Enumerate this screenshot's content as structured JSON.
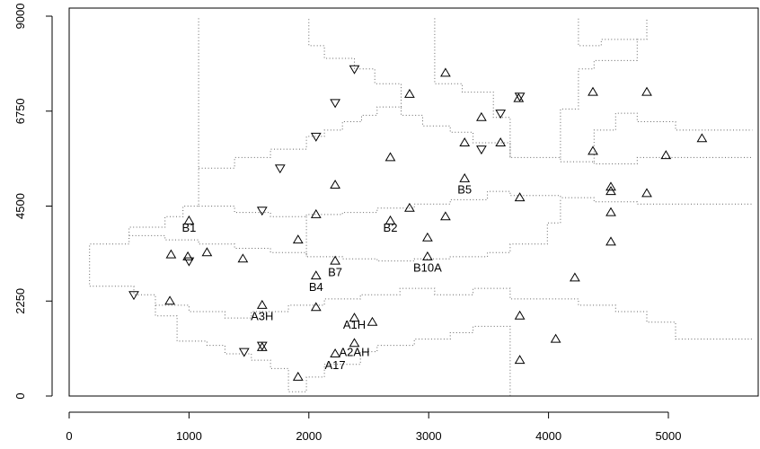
{
  "chart_data": {
    "type": "scatter",
    "title": "",
    "xlabel": "",
    "ylabel": "",
    "xlim": [
      0,
      5700
    ],
    "ylim": [
      0,
      9000
    ],
    "xticks": [
      0,
      1000,
      2000,
      3000,
      4000,
      5000
    ],
    "yticks": [
      0,
      2250,
      4500,
      6750,
      9000
    ],
    "grid": false,
    "legend": "none",
    "marker_color": "#000000",
    "boundary_color": "#666666",
    "series": [
      {
        "marker": "triangle-up",
        "points": [
          [
            1000,
            4150
          ],
          [
            850,
            3350
          ],
          [
            990,
            3300
          ],
          [
            1150,
            3400
          ],
          [
            1450,
            3250
          ],
          [
            840,
            2250
          ],
          [
            1610,
            2150
          ],
          [
            1910,
            3700
          ],
          [
            2060,
            4300
          ],
          [
            2220,
            5000
          ],
          [
            2680,
            5650
          ],
          [
            2060,
            2100
          ],
          [
            2060,
            2850
          ],
          [
            2220,
            3200
          ],
          [
            2380,
            1850
          ],
          [
            2530,
            1750
          ],
          [
            2380,
            1250
          ],
          [
            2220,
            1000
          ],
          [
            1910,
            450
          ],
          [
            1610,
            1150
          ],
          [
            2680,
            4150
          ],
          [
            2840,
            4450
          ],
          [
            2990,
            3750
          ],
          [
            3140,
            4250
          ],
          [
            2990,
            3300
          ],
          [
            2840,
            7150
          ],
          [
            3140,
            7650
          ],
          [
            3300,
            6000
          ],
          [
            3300,
            5150
          ],
          [
            3440,
            6600
          ],
          [
            3600,
            6000
          ],
          [
            3750,
            7050
          ],
          [
            3760,
            4700
          ],
          [
            3760,
            1900
          ],
          [
            3760,
            850
          ],
          [
            4060,
            1350
          ],
          [
            4220,
            2800
          ],
          [
            4370,
            7200
          ],
          [
            4370,
            5800
          ],
          [
            4520,
            4950
          ],
          [
            4520,
            4850
          ],
          [
            4520,
            4350
          ],
          [
            4520,
            3650
          ],
          [
            4820,
            7200
          ],
          [
            4820,
            4800
          ],
          [
            4980,
            5700
          ],
          [
            5280,
            6100
          ]
        ]
      },
      {
        "marker": "triangle-down",
        "points": [
          [
            540,
            2400
          ],
          [
            1000,
            3200
          ],
          [
            1460,
            1050
          ],
          [
            1610,
            1200
          ],
          [
            1610,
            4400
          ],
          [
            1760,
            5400
          ],
          [
            2060,
            6150
          ],
          [
            2220,
            6950
          ],
          [
            2380,
            7750
          ],
          [
            3440,
            5850
          ],
          [
            3600,
            6700
          ],
          [
            3760,
            7100
          ]
        ]
      }
    ],
    "labels": [
      {
        "text": "B1",
        "x": 1000,
        "y": 4000
      },
      {
        "text": "B2",
        "x": 2680,
        "y": 4000
      },
      {
        "text": "B5",
        "x": 3300,
        "y": 4900
      },
      {
        "text": "B7",
        "x": 2220,
        "y": 2950
      },
      {
        "text": "B4",
        "x": 2060,
        "y": 2600
      },
      {
        "text": "B10A",
        "x": 2990,
        "y": 3050
      },
      {
        "text": "A3H",
        "x": 1610,
        "y": 1900
      },
      {
        "text": "A1H",
        "x": 2380,
        "y": 1700
      },
      {
        "text": "A2AH",
        "x": 2380,
        "y": 1050
      },
      {
        "text": "A17",
        "x": 2220,
        "y": 750
      }
    ],
    "boundaries": [
      [
        [
          1080,
          8950
        ],
        [
          1080,
          4500
        ],
        [
          950,
          4500
        ],
        [
          950,
          4250
        ],
        [
          800,
          4250
        ],
        [
          800,
          4000
        ],
        [
          500,
          4000
        ],
        [
          500,
          3600
        ],
        [
          170,
          3600
        ],
        [
          170,
          2600
        ],
        [
          540,
          2600
        ],
        [
          540,
          2400
        ],
        [
          720,
          2400
        ],
        [
          720,
          2150
        ],
        [
          1000,
          2150
        ],
        [
          1000,
          2000
        ],
        [
          1300,
          2000
        ],
        [
          1300,
          1850
        ],
        [
          1520,
          1850
        ],
        [
          1520,
          2000
        ],
        [
          1830,
          2000
        ],
        [
          1830,
          2150
        ],
        [
          2130,
          2150
        ],
        [
          2130,
          2300
        ],
        [
          2430,
          2300
        ],
        [
          2430,
          2400
        ],
        [
          2760,
          2400
        ],
        [
          2760,
          2550
        ],
        [
          3050,
          2550
        ],
        [
          3050,
          2400
        ],
        [
          3370,
          2400
        ],
        [
          3370,
          2550
        ],
        [
          3680,
          2550
        ],
        [
          3680,
          2300
        ],
        [
          4250,
          2300
        ],
        [
          4250,
          2150
        ],
        [
          4560,
          2150
        ],
        [
          4560,
          2000
        ],
        [
          4820,
          2000
        ],
        [
          4820,
          1750
        ],
        [
          5060,
          1750
        ],
        [
          5060,
          1350
        ],
        [
          5700,
          1350
        ]
      ],
      [
        [
          1080,
          5400
        ],
        [
          1380,
          5400
        ],
        [
          1380,
          5650
        ],
        [
          1680,
          5650
        ],
        [
          1680,
          5850
        ],
        [
          1980,
          5850
        ],
        [
          1980,
          6150
        ],
        [
          2130,
          6150
        ],
        [
          2130,
          6300
        ],
        [
          2280,
          6300
        ],
        [
          2280,
          6500
        ],
        [
          2440,
          6500
        ],
        [
          2440,
          6650
        ],
        [
          2570,
          6650
        ],
        [
          2570,
          6850
        ],
        [
          2770,
          6850
        ],
        [
          2770,
          6650
        ],
        [
          2950,
          6650
        ],
        [
          2950,
          6400
        ],
        [
          3180,
          6400
        ],
        [
          3180,
          6250
        ],
        [
          3370,
          6250
        ],
        [
          3370,
          6000
        ],
        [
          3680,
          6000
        ],
        [
          3680,
          5650
        ],
        [
          4100,
          5650
        ],
        [
          4100,
          5550
        ],
        [
          4380,
          5550
        ],
        [
          4380,
          5500
        ],
        [
          4740,
          5500
        ],
        [
          4740,
          5650
        ],
        [
          5700,
          5650
        ]
      ],
      [
        [
          1080,
          4500
        ],
        [
          1380,
          4500
        ],
        [
          1380,
          4350
        ],
        [
          1680,
          4350
        ],
        [
          1680,
          4250
        ],
        [
          1980,
          4250
        ],
        [
          1980,
          4300
        ],
        [
          2280,
          4300
        ],
        [
          2280,
          4350
        ],
        [
          2570,
          4350
        ],
        [
          2570,
          4450
        ],
        [
          2880,
          4450
        ],
        [
          2880,
          4550
        ],
        [
          3180,
          4550
        ],
        [
          3180,
          4650
        ],
        [
          3490,
          4650
        ],
        [
          3490,
          4850
        ],
        [
          3680,
          4850
        ],
        [
          3680,
          4750
        ],
        [
          4100,
          4750
        ],
        [
          4100,
          4700
        ],
        [
          4380,
          4700
        ],
        [
          4380,
          4600
        ],
        [
          4740,
          4600
        ],
        [
          4740,
          4550
        ],
        [
          5700,
          4550
        ]
      ],
      [
        [
          1980,
          4250
        ],
        [
          1980,
          3300
        ],
        [
          2280,
          3300
        ],
        [
          2280,
          3250
        ],
        [
          2570,
          3250
        ],
        [
          2570,
          3200
        ],
        [
          2880,
          3200
        ],
        [
          2880,
          3250
        ],
        [
          3180,
          3250
        ],
        [
          3180,
          3300
        ],
        [
          3490,
          3300
        ],
        [
          3490,
          3400
        ],
        [
          3680,
          3400
        ],
        [
          3680,
          3600
        ],
        [
          3990,
          3600
        ],
        [
          3990,
          4100
        ],
        [
          4100,
          4100
        ],
        [
          4100,
          4700
        ]
      ],
      [
        [
          500,
          3800
        ],
        [
          800,
          3800
        ],
        [
          800,
          3700
        ],
        [
          1080,
          3700
        ],
        [
          1080,
          3600
        ],
        [
          1380,
          3600
        ],
        [
          1380,
          3500
        ],
        [
          1680,
          3500
        ],
        [
          1680,
          3400
        ],
        [
          1980,
          3400
        ],
        [
          1980,
          3300
        ]
      ],
      [
        [
          720,
          2150
        ],
        [
          720,
          1900
        ],
        [
          900,
          1900
        ],
        [
          900,
          1300
        ],
        [
          1150,
          1300
        ],
        [
          1150,
          1200
        ],
        [
          1300,
          1200
        ],
        [
          1300,
          1000
        ],
        [
          1520,
          1000
        ],
        [
          1520,
          850
        ],
        [
          1680,
          850
        ],
        [
          1680,
          650
        ],
        [
          1830,
          650
        ],
        [
          1830,
          100
        ],
        [
          1980,
          100
        ],
        [
          1980,
          450
        ],
        [
          2130,
          450
        ],
        [
          2130,
          750
        ],
        [
          2430,
          750
        ],
        [
          2430,
          1050
        ],
        [
          2570,
          1050
        ],
        [
          2570,
          1200
        ],
        [
          2880,
          1200
        ],
        [
          2880,
          1350
        ],
        [
          3180,
          1350
        ],
        [
          3180,
          1500
        ],
        [
          3370,
          1500
        ],
        [
          3370,
          1650
        ],
        [
          3680,
          1650
        ],
        [
          3680,
          0
        ]
      ],
      [
        [
          3680,
          5650
        ],
        [
          3680,
          6600
        ],
        [
          3540,
          6600
        ],
        [
          3540,
          7200
        ],
        [
          3280,
          7200
        ],
        [
          3280,
          7400
        ],
        [
          3050,
          7400
        ],
        [
          3050,
          8950
        ]
      ],
      [
        [
          4100,
          5650
        ],
        [
          4100,
          6800
        ],
        [
          4250,
          6800
        ],
        [
          4250,
          7750
        ],
        [
          4380,
          7750
        ],
        [
          4380,
          7950
        ],
        [
          4740,
          7950
        ],
        [
          4740,
          8450
        ],
        [
          4820,
          8450
        ],
        [
          4820,
          8950
        ]
      ],
      [
        [
          4380,
          5550
        ],
        [
          4380,
          6300
        ],
        [
          4560,
          6300
        ],
        [
          4560,
          6700
        ],
        [
          4740,
          6700
        ],
        [
          4740,
          6500
        ],
        [
          5060,
          6500
        ],
        [
          5060,
          6300
        ],
        [
          5700,
          6300
        ]
      ],
      [
        [
          2770,
          6850
        ],
        [
          2770,
          7400
        ],
        [
          2550,
          7400
        ],
        [
          2550,
          7750
        ],
        [
          2380,
          7750
        ],
        [
          2380,
          8000
        ],
        [
          2130,
          8000
        ],
        [
          2130,
          8300
        ],
        [
          2000,
          8300
        ],
        [
          2000,
          8950
        ]
      ],
      [
        [
          4740,
          8450
        ],
        [
          4440,
          8450
        ],
        [
          4440,
          8300
        ],
        [
          4250,
          8300
        ],
        [
          4250,
          8950
        ]
      ]
    ]
  }
}
